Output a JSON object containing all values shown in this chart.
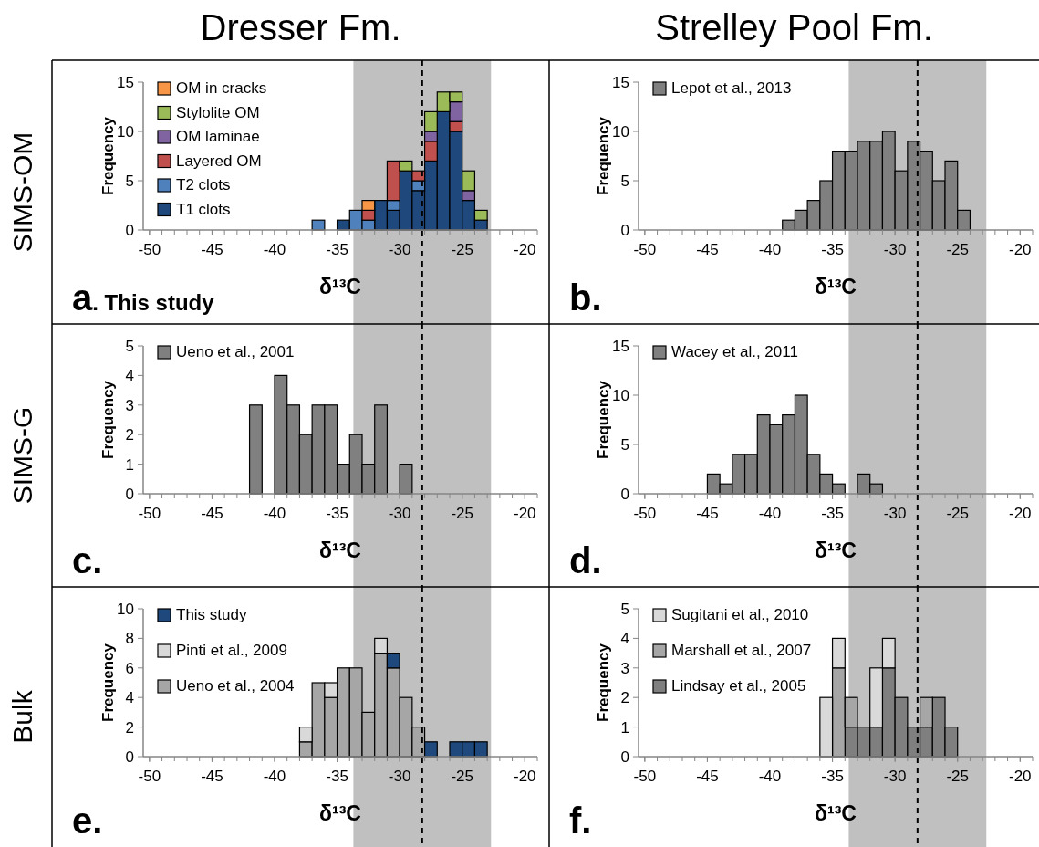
{
  "chart_data": [
    {
      "type": "bar",
      "title": "Dresser Fm.",
      "xlabel": "δ¹³C",
      "ylabel": "Frequency",
      "annotations": [
        "SIMS-OM",
        "a. This study"
      ],
      "stacked": true,
      "legend": "top left",
      "x": [
        -36.5,
        -35.5,
        -34.5,
        -33.5,
        -32.5,
        -31.5,
        -30.5,
        -29.5,
        -28.5,
        -27.5,
        -26.5,
        -25.5,
        -24.5,
        -23.5
      ],
      "xlim": [
        -50.5,
        -19
      ],
      "xticks": [
        -50,
        -45,
        -40,
        -35,
        -30,
        -25,
        -20
      ],
      "ylim": [
        0,
        15
      ],
      "yticks": [
        0,
        5,
        10,
        15
      ],
      "series": [
        {
          "name": "T1 clots",
          "color": "#1f497d",
          "values": [
            0,
            0,
            1,
            0,
            0,
            3,
            2,
            6,
            4,
            7,
            12,
            10,
            3,
            1
          ]
        },
        {
          "name": "T2 clots",
          "color": "#4f81bd",
          "values": [
            1,
            0,
            0,
            2,
            1,
            0,
            1,
            0,
            1,
            0,
            0,
            0,
            0,
            0
          ]
        },
        {
          "name": "Layered OM",
          "color": "#c0504d",
          "values": [
            0,
            0,
            0,
            0,
            1,
            0,
            4,
            0,
            1,
            2,
            0,
            1,
            0,
            0
          ]
        },
        {
          "name": "OM laminae",
          "color": "#8064a2",
          "values": [
            0,
            0,
            0,
            0,
            0,
            0,
            0,
            0,
            0,
            1,
            0,
            2,
            1,
            0
          ]
        },
        {
          "name": "Stylolite OM",
          "color": "#9bbb59",
          "values": [
            0,
            0,
            0,
            0,
            0,
            0,
            0,
            1,
            0,
            2,
            2,
            1,
            2,
            1
          ]
        },
        {
          "name": "OM in cracks",
          "color": "#f79646",
          "values": [
            0,
            0,
            0,
            0,
            1,
            0,
            0,
            0,
            0,
            0,
            0,
            0,
            0,
            0
          ]
        }
      ],
      "ref_lines": [
        {
          "axis": "x",
          "value": -28.2,
          "line_style": "dashed",
          "color": "#000000"
        }
      ],
      "bands": [
        {
          "axis": "x",
          "from": -33.7,
          "to": -22.7,
          "color": "#c0c0c0"
        }
      ]
    },
    {
      "type": "histogram",
      "title": "Strelley Pool Fm.",
      "xlabel": "δ¹³C",
      "ylabel": "Frequency",
      "annotations": [
        "b."
      ],
      "legend": "top left",
      "bins": [
        -39,
        -38,
        -37,
        -36,
        -35,
        -34,
        -33,
        -32,
        -31,
        -30,
        -29,
        -28,
        -27,
        -26,
        -25,
        -24
      ],
      "xlim": [
        -50.5,
        -19
      ],
      "xticks": [
        -50,
        -45,
        -40,
        -35,
        -30,
        -25,
        -20
      ],
      "ylim": [
        0,
        15
      ],
      "yticks": [
        0,
        5,
        10,
        15
      ],
      "series": [
        {
          "name": "Lepot et al., 2013",
          "color": "#808080",
          "values": [
            1,
            2,
            3,
            5,
            8,
            8,
            9,
            9,
            10,
            6,
            9,
            8,
            5,
            7,
            2
          ]
        }
      ],
      "ref_lines": [
        {
          "axis": "x",
          "value": -28.2,
          "line_style": "dashed",
          "color": "#000000"
        }
      ],
      "bands": [
        {
          "axis": "x",
          "from": -33.7,
          "to": -22.7,
          "color": "#c0c0c0"
        }
      ]
    },
    {
      "type": "histogram",
      "xlabel": "δ¹³C",
      "ylabel": "Frequency",
      "annotations": [
        "SIMS-G",
        "c."
      ],
      "legend": "top left",
      "bins": [
        -42,
        -41,
        -40,
        -39,
        -38,
        -37,
        -36,
        -35,
        -34,
        -33,
        -32,
        -31,
        -30,
        -29
      ],
      "xlim": [
        -50.5,
        -19
      ],
      "xticks": [
        -50,
        -45,
        -40,
        -35,
        -30,
        -25,
        -20
      ],
      "ylim": [
        0,
        5
      ],
      "yticks": [
        0,
        1,
        2,
        3,
        4,
        5
      ],
      "series": [
        {
          "name": "Ueno et al., 2001",
          "color": "#808080",
          "values": [
            3,
            0,
            4,
            3,
            2,
            3,
            3,
            1,
            2,
            1,
            3,
            0,
            1
          ]
        }
      ],
      "ref_lines": [
        {
          "axis": "x",
          "value": -28.2,
          "line_style": "dashed",
          "color": "#000000"
        }
      ],
      "bands": [
        {
          "axis": "x",
          "from": -33.7,
          "to": -22.7,
          "color": "#c0c0c0"
        }
      ]
    },
    {
      "type": "histogram",
      "xlabel": "δ¹³C",
      "ylabel": "Frequency",
      "annotations": [
        "d."
      ],
      "legend": "top left",
      "bins": [
        -45,
        -44,
        -43,
        -42,
        -41,
        -40,
        -39,
        -38,
        -37,
        -36,
        -35,
        -34,
        -33,
        -32,
        -31
      ],
      "xlim": [
        -50.5,
        -19
      ],
      "xticks": [
        -50,
        -45,
        -40,
        -35,
        -30,
        -25,
        -20
      ],
      "ylim": [
        0,
        15
      ],
      "yticks": [
        0,
        5,
        10,
        15
      ],
      "series": [
        {
          "name": "Wacey et al., 2011",
          "color": "#808080",
          "values": [
            2,
            1,
            4,
            4,
            8,
            7,
            8,
            10,
            4,
            2,
            1,
            0,
            2,
            1
          ]
        }
      ],
      "ref_lines": [
        {
          "axis": "x",
          "value": -28.2,
          "line_style": "dashed",
          "color": "#000000"
        }
      ],
      "bands": [
        {
          "axis": "x",
          "from": -33.7,
          "to": -22.7,
          "color": "#c0c0c0"
        }
      ]
    },
    {
      "type": "bar",
      "xlabel": "δ¹³C",
      "ylabel": "Frequency",
      "annotations": [
        "Bulk",
        "e."
      ],
      "stacked": true,
      "legend": "top left",
      "x": [
        -37.5,
        -36.5,
        -35.5,
        -34.5,
        -33.5,
        -32.5,
        -31.5,
        -30.5,
        -29.5,
        -28.5,
        -27.5,
        -26.5,
        -25.5,
        -24.5,
        -23.5
      ],
      "xlim": [
        -50.5,
        -19
      ],
      "xticks": [
        -50,
        -45,
        -40,
        -35,
        -30,
        -25,
        -20
      ],
      "ylim": [
        0,
        10
      ],
      "yticks": [
        0,
        2,
        4,
        6,
        8,
        10
      ],
      "series": [
        {
          "name": "Ueno et al., 2004",
          "color": "#a6a6a6",
          "values": [
            1,
            5,
            4,
            6,
            6,
            3,
            7,
            6,
            4,
            2,
            0,
            0,
            0,
            0,
            0
          ]
        },
        {
          "name": "Pinti et al., 2009",
          "color": "#d9d9d9",
          "values": [
            1,
            0,
            1,
            0,
            0,
            0,
            1,
            0,
            0,
            0,
            0,
            0,
            0,
            0,
            0
          ]
        },
        {
          "name": "This study",
          "color": "#1f497d",
          "values": [
            0,
            0,
            0,
            0,
            0,
            0,
            0,
            1,
            0,
            0,
            1,
            0,
            1,
            1,
            1
          ]
        }
      ],
      "ref_lines": [
        {
          "axis": "x",
          "value": -28.2,
          "line_style": "dashed",
          "color": "#000000"
        }
      ],
      "bands": [
        {
          "axis": "x",
          "from": -33.7,
          "to": -22.7,
          "color": "#c0c0c0"
        }
      ]
    },
    {
      "type": "bar",
      "xlabel": "δ¹³C",
      "ylabel": "Frequency",
      "annotations": [
        "f."
      ],
      "stacked": true,
      "legend": "top left",
      "x": [
        -35.5,
        -34.5,
        -33.5,
        -32.5,
        -31.5,
        -30.5,
        -29.5,
        -28.5,
        -27.5,
        -26.5,
        -25.5
      ],
      "xlim": [
        -50.5,
        -19
      ],
      "xticks": [
        -50,
        -45,
        -40,
        -35,
        -30,
        -25,
        -20
      ],
      "ylim": [
        0,
        5
      ],
      "yticks": [
        0,
        1,
        2,
        3,
        4,
        5
      ],
      "series": [
        {
          "name": "Lindsay et al., 2005",
          "color": "#7f7f7f",
          "values": [
            0,
            0,
            1,
            1,
            1,
            3,
            2,
            1,
            1,
            2,
            1
          ]
        },
        {
          "name": "Marshall et al., 2007",
          "color": "#a6a6a6",
          "values": [
            0,
            3,
            1,
            0,
            0,
            0,
            0,
            0,
            1,
            0,
            0
          ]
        },
        {
          "name": "Sugitani et al., 2010",
          "color": "#d9d9d9",
          "values": [
            2,
            1,
            0,
            0,
            2,
            1,
            0,
            0,
            0,
            0,
            0
          ]
        }
      ],
      "ref_lines": [
        {
          "axis": "x",
          "value": -28.2,
          "line_style": "dashed",
          "color": "#000000"
        }
      ],
      "bands": [
        {
          "axis": "x",
          "from": -33.7,
          "to": -22.7,
          "color": "#c0c0c0"
        }
      ]
    }
  ]
}
